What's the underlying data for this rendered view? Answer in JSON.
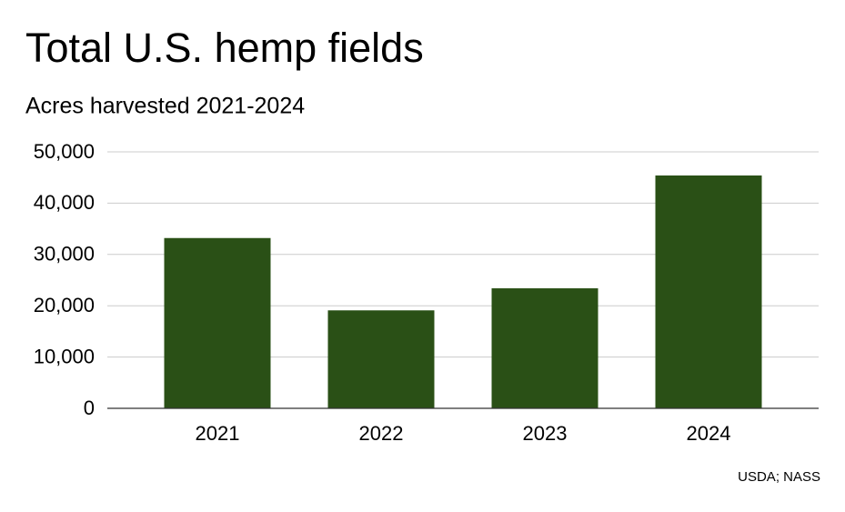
{
  "chart_data": {
    "type": "bar",
    "title": "Total U.S. hemp fields",
    "subtitle": "Acres harvested 2021-2024",
    "categories": [
      "2021",
      "2022",
      "2023",
      "2024"
    ],
    "values": [
      33200,
      19100,
      23400,
      45400
    ],
    "color": "#2a5016",
    "ylim": [
      0,
      50000
    ],
    "yticks": [
      0,
      {
        "value": 10000,
        "label": "10,000"
      },
      {
        "value": 20000,
        "label": "20,000"
      },
      {
        "value": 30000,
        "label": "30,000"
      },
      {
        "value": 40000,
        "label": "40,000"
      },
      {
        "value": 50000,
        "label": "50,000"
      }
    ],
    "grid": true,
    "source": "USDA; NASS"
  }
}
